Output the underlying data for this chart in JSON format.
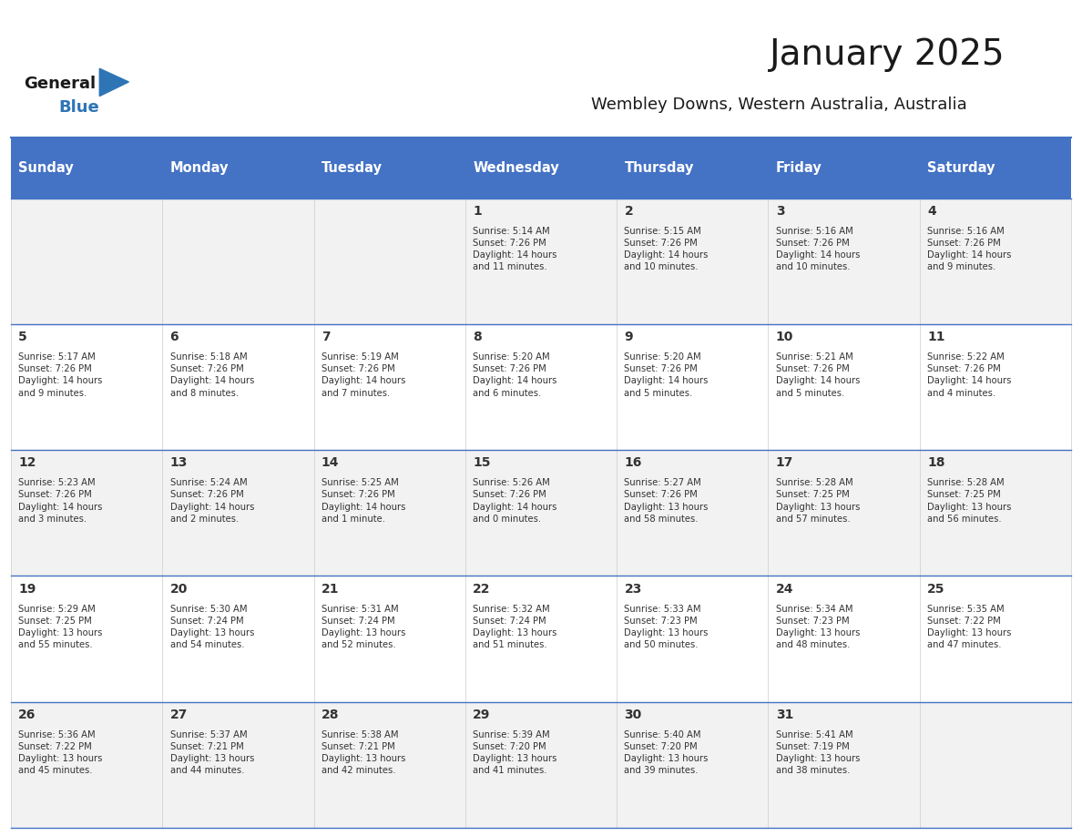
{
  "title": "January 2025",
  "subtitle": "Wembley Downs, Western Australia, Australia",
  "days_of_week": [
    "Sunday",
    "Monday",
    "Tuesday",
    "Wednesday",
    "Thursday",
    "Friday",
    "Saturday"
  ],
  "header_bg": "#4472C4",
  "header_text_color": "#FFFFFF",
  "row_bg_even": "#FFFFFF",
  "row_bg_odd": "#F2F2F2",
  "cell_text_color": "#333333",
  "day_num_color": "#333333",
  "border_color": "#4472C4",
  "title_color": "#1a1a1a",
  "subtitle_color": "#1a1a1a",
  "logo_general_color": "#1a1a1a",
  "logo_blue_color": "#2E75B6",
  "weeks": [
    [
      {
        "day": null,
        "info": ""
      },
      {
        "day": null,
        "info": ""
      },
      {
        "day": null,
        "info": ""
      },
      {
        "day": 1,
        "info": "Sunrise: 5:14 AM\nSunset: 7:26 PM\nDaylight: 14 hours\nand 11 minutes."
      },
      {
        "day": 2,
        "info": "Sunrise: 5:15 AM\nSunset: 7:26 PM\nDaylight: 14 hours\nand 10 minutes."
      },
      {
        "day": 3,
        "info": "Sunrise: 5:16 AM\nSunset: 7:26 PM\nDaylight: 14 hours\nand 10 minutes."
      },
      {
        "day": 4,
        "info": "Sunrise: 5:16 AM\nSunset: 7:26 PM\nDaylight: 14 hours\nand 9 minutes."
      }
    ],
    [
      {
        "day": 5,
        "info": "Sunrise: 5:17 AM\nSunset: 7:26 PM\nDaylight: 14 hours\nand 9 minutes."
      },
      {
        "day": 6,
        "info": "Sunrise: 5:18 AM\nSunset: 7:26 PM\nDaylight: 14 hours\nand 8 minutes."
      },
      {
        "day": 7,
        "info": "Sunrise: 5:19 AM\nSunset: 7:26 PM\nDaylight: 14 hours\nand 7 minutes."
      },
      {
        "day": 8,
        "info": "Sunrise: 5:20 AM\nSunset: 7:26 PM\nDaylight: 14 hours\nand 6 minutes."
      },
      {
        "day": 9,
        "info": "Sunrise: 5:20 AM\nSunset: 7:26 PM\nDaylight: 14 hours\nand 5 minutes."
      },
      {
        "day": 10,
        "info": "Sunrise: 5:21 AM\nSunset: 7:26 PM\nDaylight: 14 hours\nand 5 minutes."
      },
      {
        "day": 11,
        "info": "Sunrise: 5:22 AM\nSunset: 7:26 PM\nDaylight: 14 hours\nand 4 minutes."
      }
    ],
    [
      {
        "day": 12,
        "info": "Sunrise: 5:23 AM\nSunset: 7:26 PM\nDaylight: 14 hours\nand 3 minutes."
      },
      {
        "day": 13,
        "info": "Sunrise: 5:24 AM\nSunset: 7:26 PM\nDaylight: 14 hours\nand 2 minutes."
      },
      {
        "day": 14,
        "info": "Sunrise: 5:25 AM\nSunset: 7:26 PM\nDaylight: 14 hours\nand 1 minute."
      },
      {
        "day": 15,
        "info": "Sunrise: 5:26 AM\nSunset: 7:26 PM\nDaylight: 14 hours\nand 0 minutes."
      },
      {
        "day": 16,
        "info": "Sunrise: 5:27 AM\nSunset: 7:26 PM\nDaylight: 13 hours\nand 58 minutes."
      },
      {
        "day": 17,
        "info": "Sunrise: 5:28 AM\nSunset: 7:25 PM\nDaylight: 13 hours\nand 57 minutes."
      },
      {
        "day": 18,
        "info": "Sunrise: 5:28 AM\nSunset: 7:25 PM\nDaylight: 13 hours\nand 56 minutes."
      }
    ],
    [
      {
        "day": 19,
        "info": "Sunrise: 5:29 AM\nSunset: 7:25 PM\nDaylight: 13 hours\nand 55 minutes."
      },
      {
        "day": 20,
        "info": "Sunrise: 5:30 AM\nSunset: 7:24 PM\nDaylight: 13 hours\nand 54 minutes."
      },
      {
        "day": 21,
        "info": "Sunrise: 5:31 AM\nSunset: 7:24 PM\nDaylight: 13 hours\nand 52 minutes."
      },
      {
        "day": 22,
        "info": "Sunrise: 5:32 AM\nSunset: 7:24 PM\nDaylight: 13 hours\nand 51 minutes."
      },
      {
        "day": 23,
        "info": "Sunrise: 5:33 AM\nSunset: 7:23 PM\nDaylight: 13 hours\nand 50 minutes."
      },
      {
        "day": 24,
        "info": "Sunrise: 5:34 AM\nSunset: 7:23 PM\nDaylight: 13 hours\nand 48 minutes."
      },
      {
        "day": 25,
        "info": "Sunrise: 5:35 AM\nSunset: 7:22 PM\nDaylight: 13 hours\nand 47 minutes."
      }
    ],
    [
      {
        "day": 26,
        "info": "Sunrise: 5:36 AM\nSunset: 7:22 PM\nDaylight: 13 hours\nand 45 minutes."
      },
      {
        "day": 27,
        "info": "Sunrise: 5:37 AM\nSunset: 7:21 PM\nDaylight: 13 hours\nand 44 minutes."
      },
      {
        "day": 28,
        "info": "Sunrise: 5:38 AM\nSunset: 7:21 PM\nDaylight: 13 hours\nand 42 minutes."
      },
      {
        "day": 29,
        "info": "Sunrise: 5:39 AM\nSunset: 7:20 PM\nDaylight: 13 hours\nand 41 minutes."
      },
      {
        "day": 30,
        "info": "Sunrise: 5:40 AM\nSunset: 7:20 PM\nDaylight: 13 hours\nand 39 minutes."
      },
      {
        "day": 31,
        "info": "Sunrise: 5:41 AM\nSunset: 7:19 PM\nDaylight: 13 hours\nand 38 minutes."
      },
      {
        "day": null,
        "info": ""
      }
    ]
  ]
}
